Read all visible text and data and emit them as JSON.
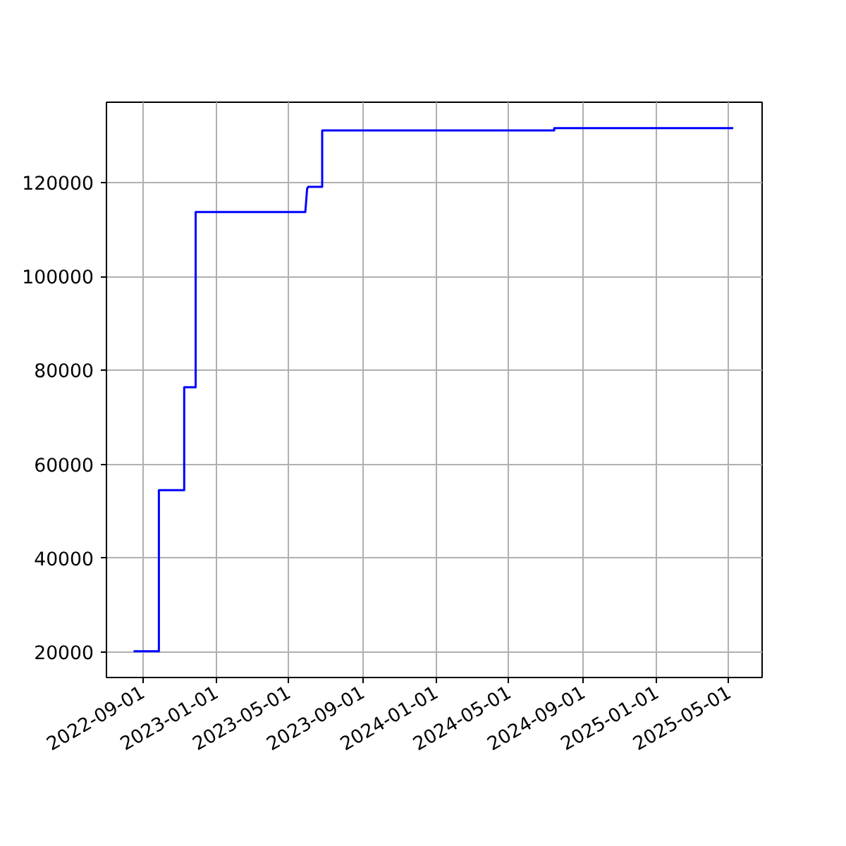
{
  "chart_data": {
    "type": "line",
    "x": [
      "2022-08-17",
      "2022-09-28",
      "2022-09-28",
      "2022-11-09",
      "2022-11-09",
      "2022-11-28",
      "2022-11-28",
      "2023-05-29",
      "2023-06-01",
      "2023-06-03",
      "2023-06-26",
      "2023-06-26",
      "2024-07-15",
      "2024-07-15",
      "2025-05-08"
    ],
    "series": [
      {
        "color": "#0000ff",
        "values": [
          20200,
          20200,
          54500,
          54500,
          76400,
          76400,
          113700,
          113700,
          118700,
          119100,
          119100,
          131100,
          131100,
          131600,
          131600
        ]
      }
    ],
    "xlim": [
      "2022-07-03",
      "2025-06-25"
    ],
    "xticks": [
      "2022-09-01",
      "2023-01-01",
      "2023-05-01",
      "2023-09-01",
      "2024-01-01",
      "2024-05-01",
      "2024-09-01",
      "2025-01-01",
      "2025-05-01"
    ],
    "ylim": [
      14600,
      137100
    ],
    "yticks": [
      20000,
      40000,
      60000,
      80000,
      100000,
      120000
    ],
    "grid": true,
    "line_style": "solid"
  }
}
